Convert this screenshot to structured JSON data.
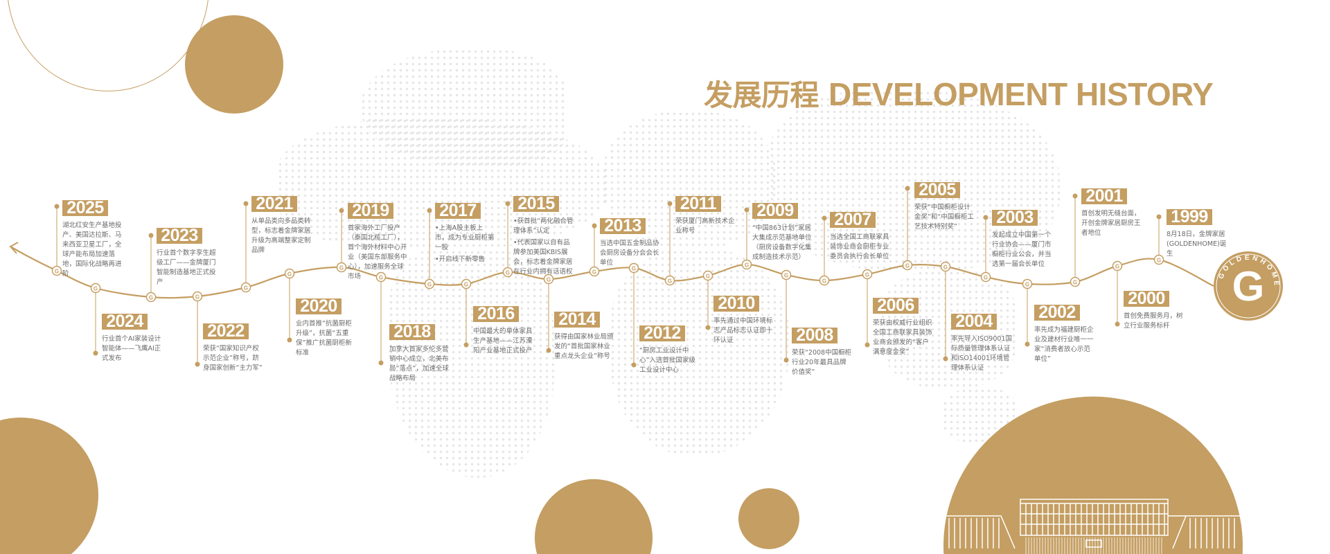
{
  "title": {
    "cn": "发展历程",
    "en": "DEVELOPMENT HISTORY"
  },
  "colors": {
    "accent": "#c49e62",
    "text": "#6a6a6a",
    "map_dots": "#e6e6e6"
  },
  "logo": {
    "text": "GOLDENHOME",
    "letter": "G"
  },
  "timeline": [
    {
      "year": "2025",
      "text": [
        "湖北红安生产基地投产、美国达拉斯、马来西亚卫星工厂，全球产能布局加速落地，国际化战略再进阶"
      ]
    },
    {
      "year": "2024",
      "text": [
        "行业首个AI家装设计智能体——飞鹰AI正式发布"
      ]
    },
    {
      "year": "2023",
      "text": [
        "行业首个数字孪生超级工厂——金牌厦门智能制造基地正式投产"
      ]
    },
    {
      "year": "2022",
      "text": [
        "荣获“国家知识产权示范企业”称号，跻身国家创新“主力军”"
      ]
    },
    {
      "year": "2021",
      "text": [
        "从单品类向多品类转型，标志着金牌家居升级为高端整家定制品牌"
      ]
    },
    {
      "year": "2020",
      "text": [
        "业内首推“抗菌厨柜升级”，抗菌“五重保”推广抗菌厨柜新标准"
      ]
    },
    {
      "year": "2019",
      "text": [
        "首家海外工厂投产（泰国北榄工厂），首个海外材料中心开业（美国东部服务中心），加速服务全球市场"
      ]
    },
    {
      "year": "2018",
      "text": [
        "加拿大首家多伦多营销中心成立，北美布局“落点”，加速全球战略布局"
      ]
    },
    {
      "year": "2017",
      "text": [
        "•上海A股主板上市，成为专业厨柜第一股",
        "•开启线下新零售"
      ]
    },
    {
      "year": "2016",
      "text": [
        "中国最大的单体家具生产基地——江苏溧阳产业基地正式投产"
      ]
    },
    {
      "year": "2015",
      "text": [
        "•获首批“两化融合管理体系”认定",
        "•代表国家以自有品牌参加美国KBIS展会，标志着金牌家居在行业内拥有话语权"
      ]
    },
    {
      "year": "2014",
      "text": [
        "获得由国家林业局颁发的“首批国家林业重点龙头企业”称号"
      ]
    },
    {
      "year": "2013",
      "text": [
        "当选中国五金制品协会厨房设备分会会长单位"
      ]
    },
    {
      "year": "2012",
      "text": [
        "“厨房工业设计中心”入选首批国家级工业设计中心"
      ]
    },
    {
      "year": "2011",
      "text": [
        "荣获厦门高新技术企业称号"
      ]
    },
    {
      "year": "2010",
      "text": [
        "率先通过中国环境标志产品标志认证即十环认证"
      ]
    },
    {
      "year": "2009",
      "text": [
        "“中国863计划”家居大集成示范基地单位（厨房设备数字化集成制造技术示范）"
      ]
    },
    {
      "year": "2008",
      "text": [
        "荣获“2008中国橱柜行业20年最具品牌价值奖”"
      ]
    },
    {
      "year": "2007",
      "text": [
        "当选全国工商联家具装饰业商会厨柜专业委员会执行会长单位"
      ]
    },
    {
      "year": "2006",
      "text": [
        "荣获由权威行业组织全国工商联家具装饰业商会颁发的“客户满意度金奖”"
      ]
    },
    {
      "year": "2005",
      "text": [
        "荣获“中国橱柜设计金奖”和“中国橱柜工艺技术特别奖”"
      ]
    },
    {
      "year": "2004",
      "text": [
        "率先导入ISO9001国际质量管理体系认证和ISO14001环境管理体系认证"
      ]
    },
    {
      "year": "2003",
      "text": [
        "发起成立中国第一个行业协会——厦门市橱柜行业公会，并当选第一届会长单位"
      ]
    },
    {
      "year": "2002",
      "text": [
        "率先成为福建厨柜企业及建材行业唯一一家“消费者放心示范单位”"
      ]
    },
    {
      "year": "2001",
      "text": [
        "首创发明无缝台面，开创金牌家居厨房王者地位"
      ]
    },
    {
      "year": "2000",
      "text": [
        "首创免费服务月，树立行业服务标杆"
      ]
    },
    {
      "year": "1999",
      "text": [
        "8月18日，金牌家居(GOLDENHOME)诞生"
      ]
    }
  ]
}
